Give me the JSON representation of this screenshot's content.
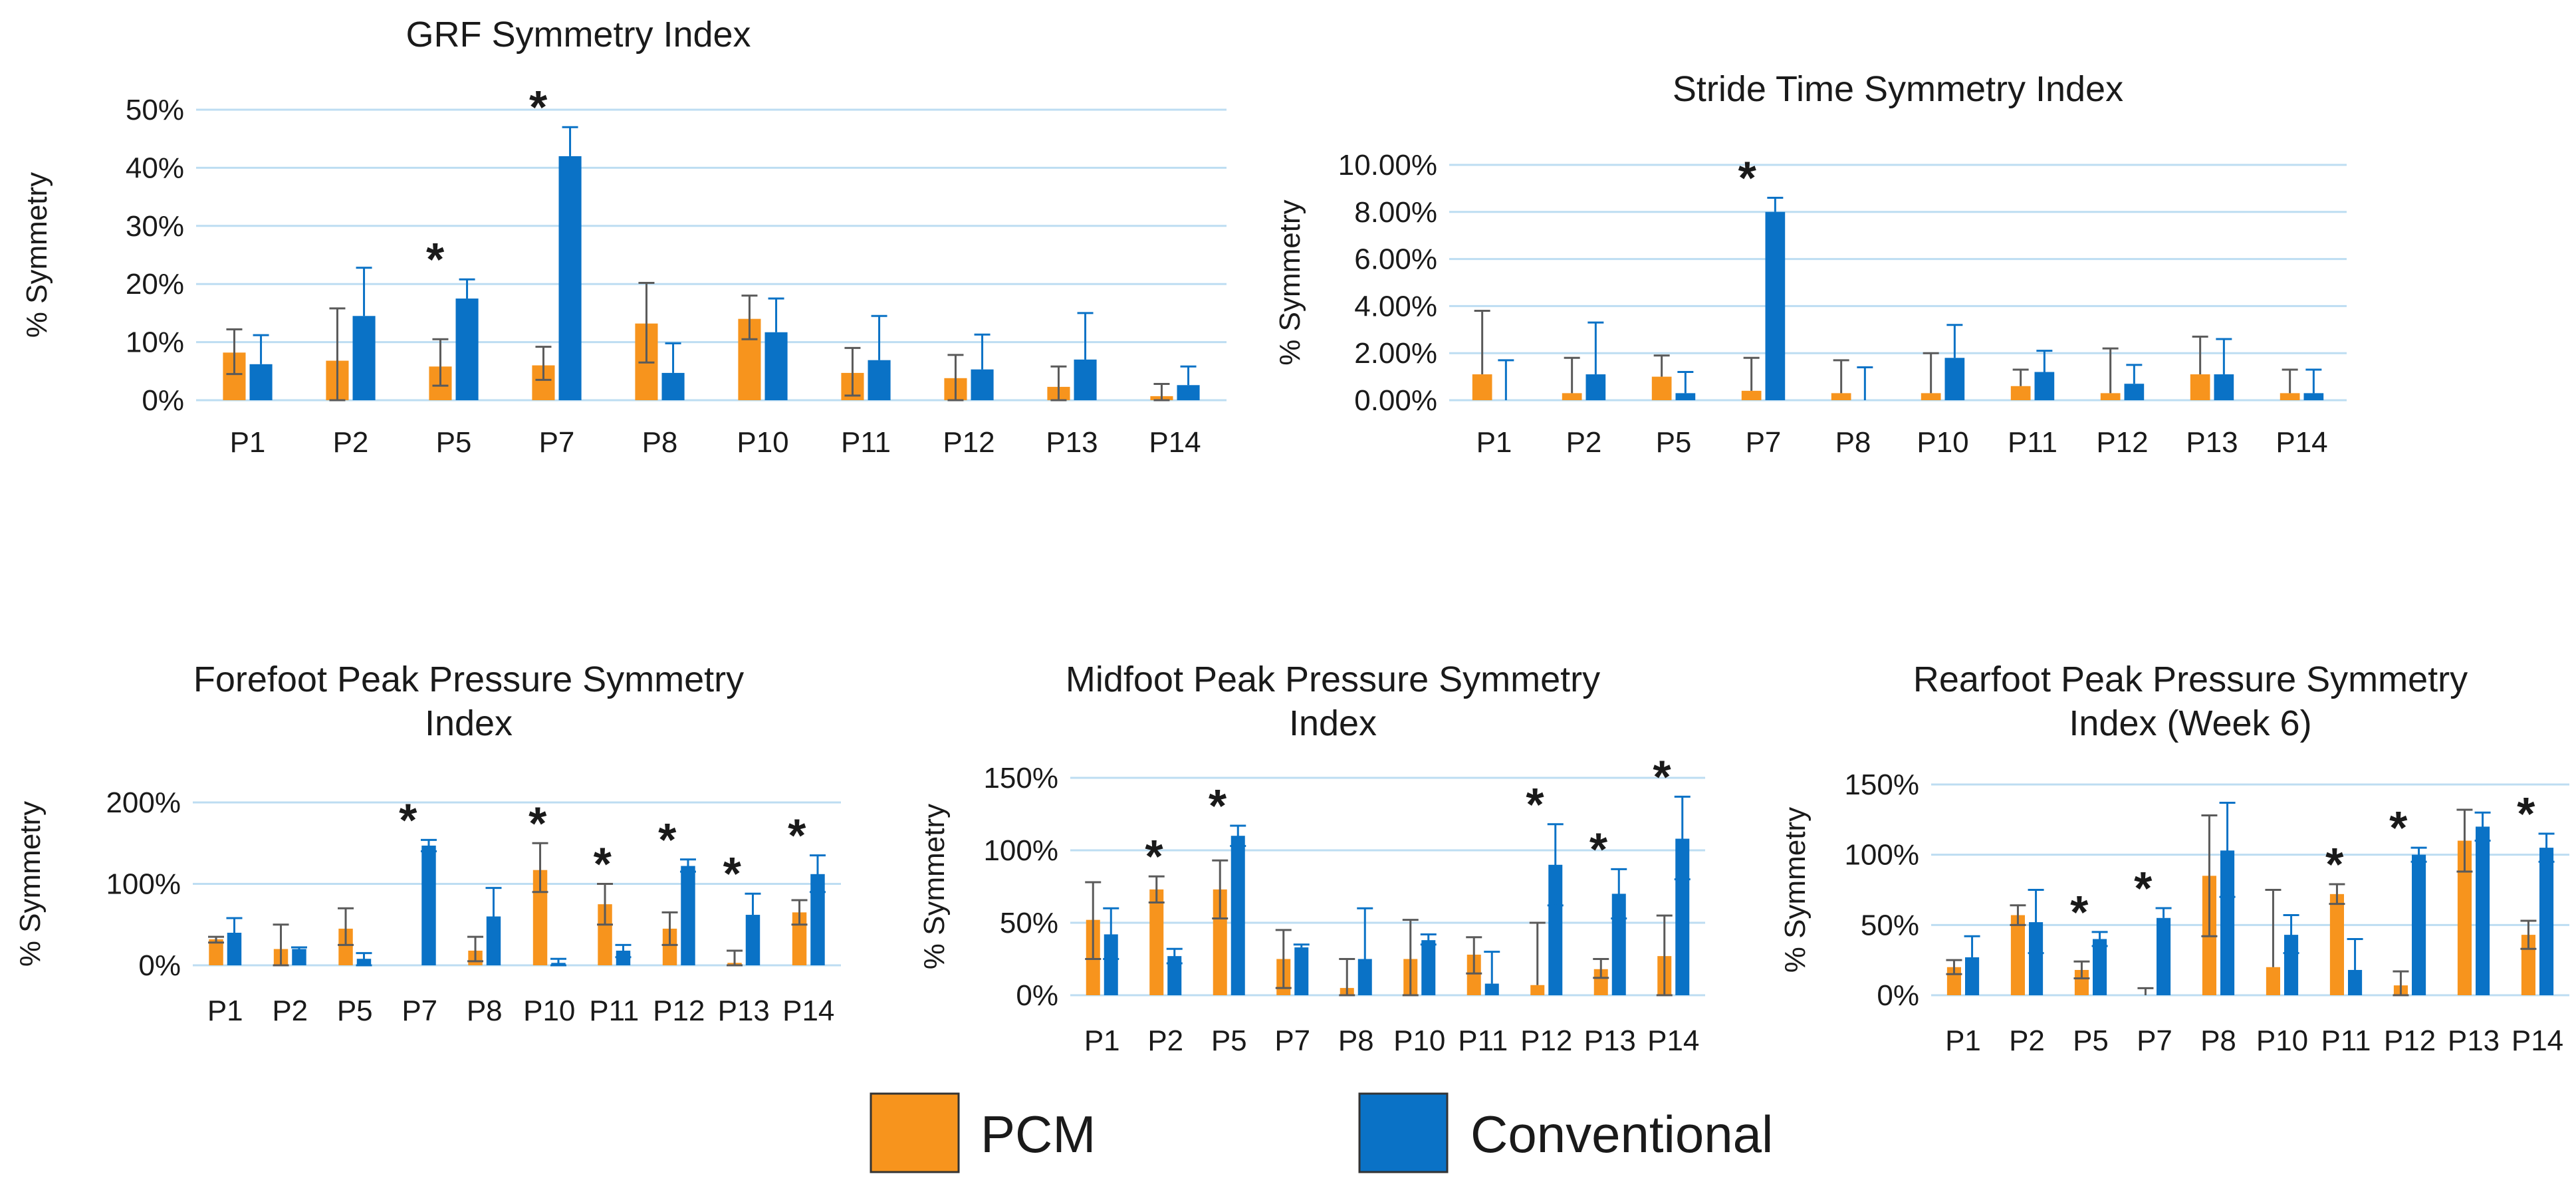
{
  "legend": [
    {
      "name": "PCM",
      "color": "#F7941D"
    },
    {
      "name": "Conventional",
      "color": "#0A72C6"
    }
  ],
  "colors": {
    "gridline": "#BDDDF2",
    "error_bar_pcm": "#5a5a5a",
    "error_bar_conv": "#0A72C6"
  },
  "chart_data": [
    {
      "type": "bar",
      "title": [
        "GRF Symmetry Index"
      ],
      "ylabel": "% Symmetry",
      "ylim": [
        0,
        50
      ],
      "yticks": [
        0,
        10,
        20,
        30,
        40,
        50
      ],
      "ytick_labels": [
        "0%",
        "10%",
        "20%",
        "30%",
        "40%",
        "50%"
      ],
      "categories": [
        "P1",
        "P2",
        "P5",
        "P7",
        "P8",
        "P10",
        "P11",
        "P12",
        "P13",
        "P14"
      ],
      "series": [
        {
          "name": "PCM",
          "values": [
            8.2,
            6.8,
            5.8,
            6.0,
            13.2,
            14.0,
            4.7,
            3.8,
            2.3,
            0.7
          ],
          "err_low": [
            4.5,
            0,
            2.5,
            3.5,
            6.5,
            10.5,
            0.8,
            0,
            0,
            0
          ],
          "err_high": [
            12.2,
            15.8,
            10.5,
            9.2,
            20.2,
            18.0,
            9.0,
            7.8,
            5.8,
            2.8
          ]
        },
        {
          "name": "Conventional",
          "values": [
            6.2,
            14.5,
            17.5,
            42.0,
            4.7,
            11.7,
            6.9,
            5.3,
            7.0,
            2.6
          ],
          "err_low": [
            null,
            null,
            null,
            null,
            null,
            null,
            null,
            null,
            null,
            null
          ],
          "err_high": [
            11.2,
            22.8,
            20.8,
            47.0,
            9.8,
            17.5,
            14.5,
            11.3,
            15.0,
            5.8
          ]
        }
      ],
      "significant": [
        "P5",
        "P7"
      ]
    },
    {
      "type": "bar",
      "title": [
        "Stride Time Symmetry Index"
      ],
      "ylabel": "% Symmetry",
      "ylim": [
        0,
        10
      ],
      "yticks": [
        0,
        2,
        4,
        6,
        8,
        10
      ],
      "ytick_labels": [
        "0.00%",
        "2.00%",
        "4.00%",
        "6.00%",
        "8.00%",
        "10.00%"
      ],
      "categories": [
        "P1",
        "P2",
        "P5",
        "P7",
        "P8",
        "P10",
        "P11",
        "P12",
        "P13",
        "P14"
      ],
      "series": [
        {
          "name": "PCM",
          "values": [
            1.1,
            0.3,
            1.0,
            0.4,
            0.3,
            0.3,
            0.6,
            0.3,
            1.1,
            0.3
          ],
          "err_low": [
            null,
            null,
            null,
            null,
            null,
            null,
            null,
            null,
            null,
            null
          ],
          "err_high": [
            3.8,
            1.8,
            1.9,
            1.8,
            1.7,
            2.0,
            1.3,
            2.2,
            2.7,
            1.3
          ]
        },
        {
          "name": "Conventional",
          "values": [
            0.0,
            1.1,
            0.3,
            8.0,
            0.0,
            1.8,
            1.2,
            0.7,
            1.1,
            0.3
          ],
          "err_low": [
            null,
            null,
            null,
            null,
            null,
            null,
            null,
            null,
            null,
            null
          ],
          "err_high": [
            1.7,
            3.3,
            1.2,
            8.6,
            1.4,
            3.2,
            2.1,
            1.5,
            2.6,
            1.3
          ]
        }
      ],
      "significant": [
        "P7"
      ]
    },
    {
      "type": "bar",
      "title": [
        "Forefoot Peak Pressure Symmetry",
        "Index"
      ],
      "ylabel": "% Symmetry",
      "ylim": [
        0,
        200
      ],
      "yticks": [
        0,
        100,
        200
      ],
      "ytick_labels": [
        "0%",
        "100%",
        "200%"
      ],
      "categories": [
        "P1",
        "P2",
        "P5",
        "P7",
        "P8",
        "P10",
        "P11",
        "P12",
        "P13",
        "P14"
      ],
      "series": [
        {
          "name": "PCM",
          "values": [
            32,
            20,
            45,
            0,
            18,
            117,
            75,
            45,
            3,
            65
          ],
          "err_low": [
            28,
            0,
            25,
            null,
            5,
            90,
            50,
            25,
            0,
            50
          ],
          "err_high": [
            35,
            50,
            70,
            null,
            35,
            150,
            100,
            65,
            18,
            80
          ]
        },
        {
          "name": "Conventional",
          "values": [
            40,
            20,
            8,
            147,
            60,
            3,
            18,
            122,
            62,
            112
          ],
          "err_low": [
            null,
            null,
            0,
            140,
            null,
            0,
            10,
            115,
            null,
            90
          ],
          "err_high": [
            58,
            22,
            15,
            154,
            95,
            8,
            25,
            130,
            88,
            135
          ]
        }
      ],
      "significant": [
        "P7",
        "P10",
        "P11",
        "P12",
        "P13",
        "P14"
      ]
    },
    {
      "type": "bar",
      "title": [
        "Midfoot Peak Pressure  Symmetry",
        "Index"
      ],
      "ylabel": "% Symmetry",
      "ylim": [
        0,
        150
      ],
      "yticks": [
        0,
        50,
        100,
        150
      ],
      "ytick_labels": [
        "0%",
        "50%",
        "100%",
        "150%"
      ],
      "categories": [
        "P1",
        "P2",
        "P5",
        "P7",
        "P8",
        "P10",
        "P11",
        "P12",
        "P13",
        "P14"
      ],
      "series": [
        {
          "name": "PCM",
          "values": [
            52,
            73,
            73,
            25,
            5,
            25,
            28,
            7,
            18,
            27
          ],
          "err_low": [
            25,
            64,
            53,
            5,
            0,
            0,
            15,
            null,
            12,
            0
          ],
          "err_high": [
            78,
            82,
            93,
            45,
            25,
            52,
            40,
            50,
            25,
            55
          ]
        },
        {
          "name": "Conventional",
          "values": [
            42,
            27,
            110,
            33,
            25,
            38,
            8,
            90,
            70,
            108
          ],
          "err_low": [
            25,
            22,
            103,
            null,
            null,
            35,
            null,
            62,
            53,
            80
          ],
          "err_high": [
            60,
            32,
            117,
            35,
            60,
            42,
            30,
            118,
            87,
            137
          ]
        }
      ],
      "significant": [
        "P2",
        "P5",
        "P12",
        "P13",
        "P14"
      ]
    },
    {
      "type": "bar",
      "title": [
        "Rearfoot Peak Pressure Symmetry",
        "Index (Week 6)"
      ],
      "ylabel": "% Symmetry",
      "ylim": [
        0,
        150
      ],
      "yticks": [
        0,
        50,
        100,
        150
      ],
      "ytick_labels": [
        "0%",
        "50%",
        "100%",
        "150%"
      ],
      "categories": [
        "P1",
        "P2",
        "P5",
        "P7",
        "P8",
        "P10",
        "P11",
        "P12",
        "P13",
        "P14"
      ],
      "series": [
        {
          "name": "PCM",
          "values": [
            20,
            57,
            18,
            0,
            85,
            20,
            72,
            7,
            110,
            43
          ],
          "err_low": [
            15,
            50,
            12,
            null,
            42,
            null,
            65,
            0,
            88,
            33
          ],
          "err_high": [
            25,
            64,
            24,
            5,
            128,
            75,
            79,
            17,
            132,
            53
          ]
        },
        {
          "name": "Conventional",
          "values": [
            27,
            52,
            40,
            55,
            103,
            43,
            18,
            100,
            120,
            105
          ],
          "err_low": [
            null,
            30,
            35,
            null,
            70,
            30,
            null,
            95,
            110,
            95
          ],
          "err_high": [
            42,
            75,
            45,
            62,
            137,
            57,
            40,
            105,
            130,
            115
          ]
        }
      ],
      "significant": [
        "P5",
        "P7",
        "P11",
        "P12",
        "P14"
      ]
    }
  ]
}
